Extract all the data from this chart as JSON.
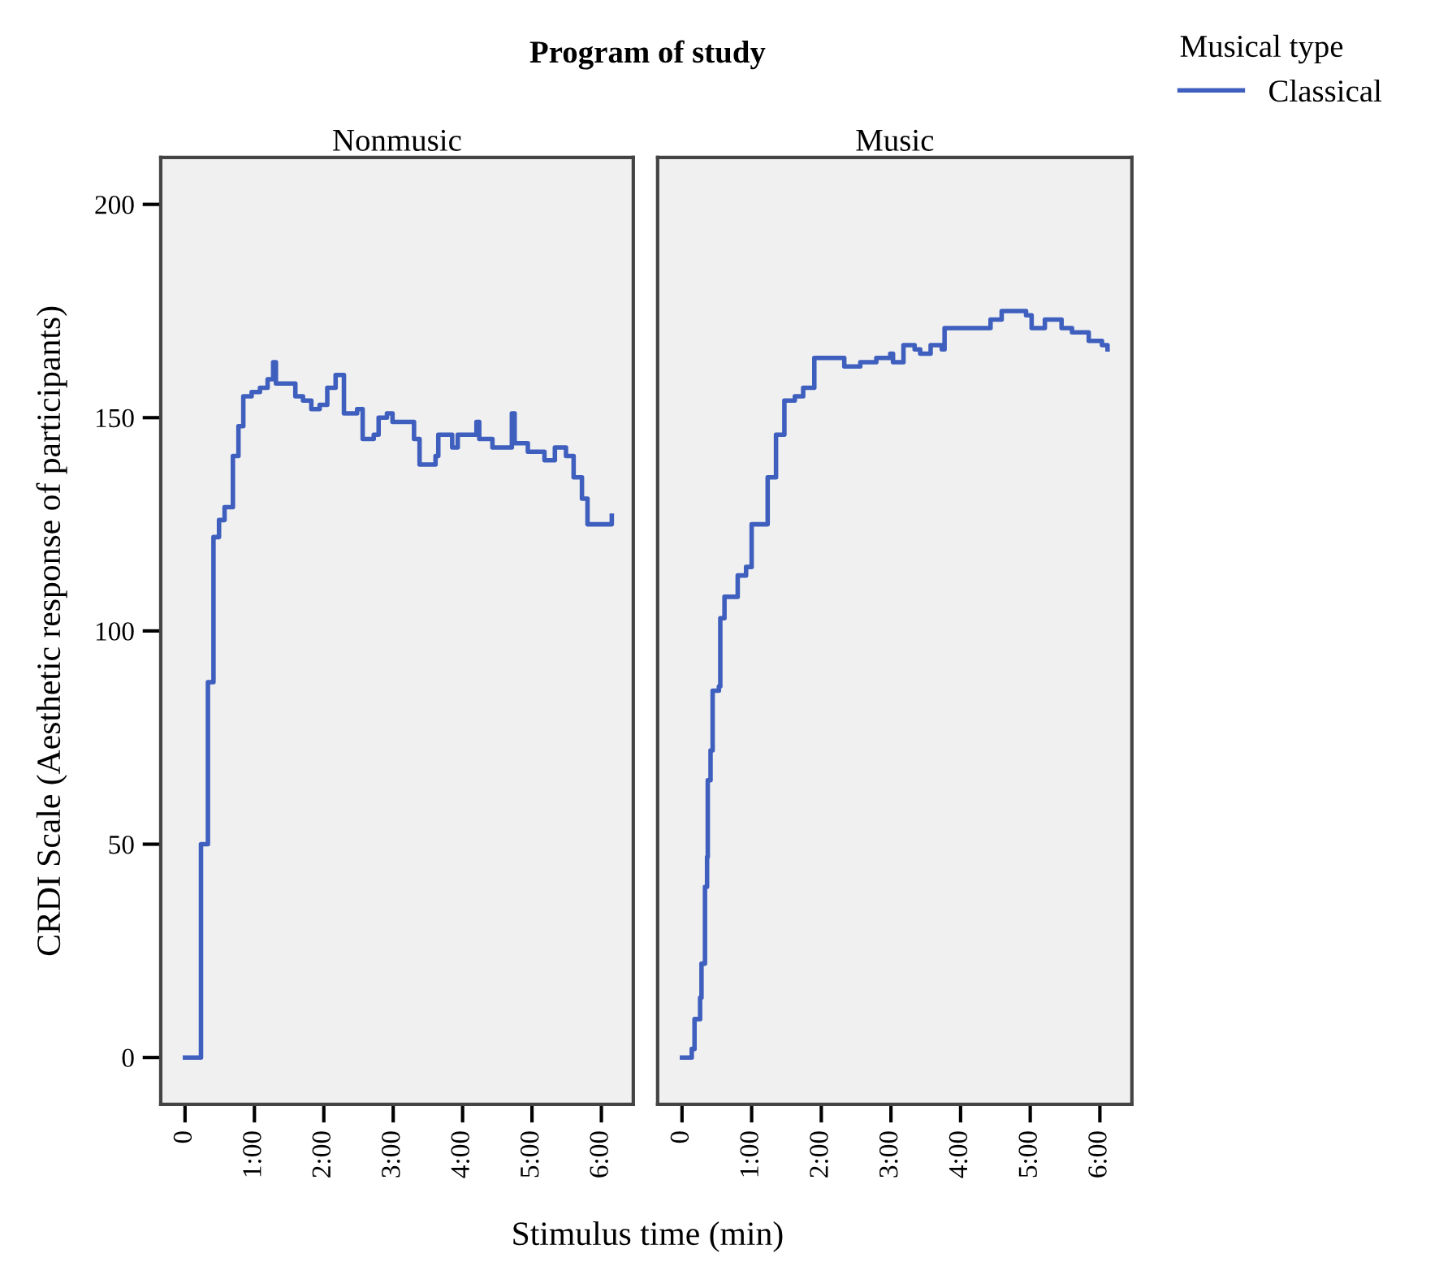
{
  "chart_data": [
    {
      "type": "step",
      "title": "Nonmusic",
      "annotations": [
        "Program of study"
      ],
      "xlabel": "Stimulus time (min)",
      "ylabel": "CRDI Scale (Aesthetic response of participants)",
      "legend_title": "Musical type",
      "legend": "top right",
      "xlim": [
        -0.35,
        6.46
      ],
      "xticks": [
        {
          "value": 0,
          "label": "0"
        },
        {
          "value": 1,
          "label": "1:00"
        },
        {
          "value": 2,
          "label": "2:00"
        },
        {
          "value": 3,
          "label": "3:00"
        },
        {
          "value": 4,
          "label": "4:00"
        },
        {
          "value": 5,
          "label": "5:00"
        },
        {
          "value": 6,
          "label": "6:00"
        }
      ],
      "ylim": [
        -11,
        211
      ],
      "yticks": [
        0,
        50,
        100,
        150,
        200
      ],
      "grid": false,
      "series": [
        {
          "name": "Classical",
          "color": "#3f5fbf",
          "x": [
            0,
            0.14,
            0.23,
            0.33,
            0.41,
            0.49,
            0.57,
            0.69,
            0.77,
            0.84,
            0.96,
            1.08,
            1.19,
            1.27,
            1.31,
            1.43,
            1.59,
            1.7,
            1.82,
            1.94,
            2.05,
            2.17,
            2.25,
            2.29,
            2.48,
            2.56,
            2.72,
            2.79,
            2.91,
            2.99,
            3.22,
            3.3,
            3.38,
            3.61,
            3.65,
            3.85,
            3.93,
            4.2,
            4.24,
            4.43,
            4.63,
            4.71,
            4.75,
            4.94,
            5.18,
            5.33,
            5.49,
            5.6,
            5.72,
            5.8,
            5.96,
            6.15
          ],
          "values": [
            0,
            0,
            50,
            88,
            122,
            126,
            129,
            141,
            148,
            155,
            156,
            157,
            159,
            163,
            158,
            158,
            155,
            154,
            152,
            153,
            157,
            160,
            160,
            151,
            152,
            145,
            146,
            150,
            151,
            149,
            149,
            145,
            139,
            141,
            146,
            143,
            146,
            149,
            145,
            143,
            143,
            151,
            144,
            142,
            140,
            143,
            141,
            136,
            131,
            125,
            125,
            127
          ]
        }
      ]
    },
    {
      "type": "step",
      "title": "Music",
      "tick_labels": "x",
      "xlim": [
        -0.35,
        6.46
      ],
      "xticks": [
        {
          "value": 0,
          "label": "0"
        },
        {
          "value": 1,
          "label": "1:00"
        },
        {
          "value": 2,
          "label": "2:00"
        },
        {
          "value": 3,
          "label": "3:00"
        },
        {
          "value": 4,
          "label": "4:00"
        },
        {
          "value": 5,
          "label": "5:00"
        },
        {
          "value": 6,
          "label": "6:00"
        }
      ],
      "ylim": [
        -11,
        211
      ],
      "grid": false,
      "series": [
        {
          "color": "#3f5fbf",
          "x": [
            0,
            0.14,
            0.18,
            0.26,
            0.28,
            0.33,
            0.36,
            0.37,
            0.41,
            0.44,
            0.53,
            0.55,
            0.61,
            0.8,
            0.92,
            1.0,
            1.15,
            1.23,
            1.35,
            1.47,
            1.62,
            1.74,
            1.9,
            2.25,
            2.33,
            2.56,
            2.79,
            2.99,
            3.03,
            3.18,
            3.34,
            3.42,
            3.57,
            3.73,
            3.77,
            4.12,
            4.36,
            4.43,
            4.59,
            4.94,
            5.02,
            5.21,
            5.45,
            5.6,
            5.84,
            6.03,
            6.11
          ],
          "values": [
            0,
            2,
            9,
            14,
            22,
            40,
            47,
            65,
            72,
            86,
            87,
            103,
            108,
            113,
            115,
            125,
            125,
            136,
            146,
            154,
            155,
            157,
            164,
            164,
            162,
            163,
            164,
            165,
            163,
            167,
            166,
            165,
            167,
            166,
            171,
            171,
            171,
            173,
            175,
            174,
            171,
            173,
            171,
            170,
            168,
            167,
            166
          ]
        }
      ]
    }
  ]
}
